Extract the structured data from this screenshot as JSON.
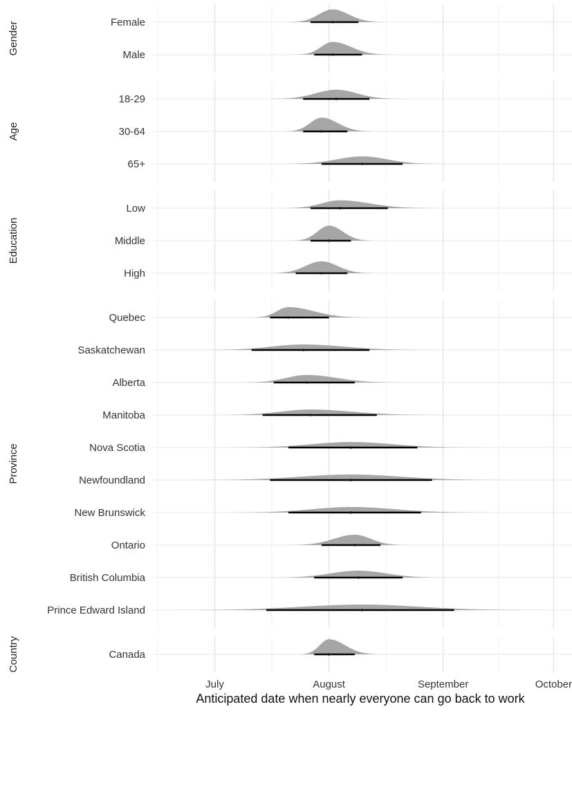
{
  "chart_data": {
    "type": "density-interval",
    "xlabel": "Anticipated date when nearly everyone can go back to work",
    "x_ticks": [
      "July",
      "August",
      "September",
      "October"
    ],
    "x_tick_dates": [
      "2021-07-01",
      "2021-08-01",
      "2021-09-01",
      "2021-10-01"
    ],
    "xlim": [
      "2021-06-14",
      "2021-10-06"
    ],
    "grid": true,
    "density_color": "#a6a6a6",
    "interval_color": "#000000",
    "facets": [
      {
        "label": "Gender",
        "rows": [
          {
            "label": "Female",
            "median": "2021-08-02",
            "lo": "2021-07-27",
            "hi": "2021-08-09",
            "spread": 4.2
          },
          {
            "label": "Male",
            "median": "2021-08-02",
            "lo": "2021-07-28",
            "hi": "2021-08-10",
            "spread": 4.2
          }
        ]
      },
      {
        "label": "Age",
        "rows": [
          {
            "label": "18-29",
            "median": "2021-08-03",
            "lo": "2021-07-25",
            "hi": "2021-08-12",
            "spread": 5.0
          },
          {
            "label": "30-64",
            "median": "2021-07-30",
            "lo": "2021-07-25",
            "hi": "2021-08-06",
            "spread": 3.8
          },
          {
            "label": "65+",
            "median": "2021-08-10",
            "lo": "2021-07-30",
            "hi": "2021-08-21",
            "spread": 6.0
          }
        ]
      },
      {
        "label": "Education",
        "rows": [
          {
            "label": "Low",
            "median": "2021-08-04",
            "lo": "2021-07-27",
            "hi": "2021-08-17",
            "spread": 6.0
          },
          {
            "label": "Middle",
            "median": "2021-08-01",
            "lo": "2021-07-27",
            "hi": "2021-08-07",
            "spread": 3.2
          },
          {
            "label": "High",
            "median": "2021-07-30",
            "lo": "2021-07-23",
            "hi": "2021-08-06",
            "spread": 4.0
          }
        ]
      },
      {
        "label": "Province",
        "rows": [
          {
            "label": "Quebec",
            "median": "2021-07-21",
            "lo": "2021-07-16",
            "hi": "2021-08-01",
            "spread": 4.5
          },
          {
            "label": "Saskatchewan",
            "median": "2021-07-25",
            "lo": "2021-07-11",
            "hi": "2021-08-12",
            "spread": 9.5
          },
          {
            "label": "Alberta",
            "median": "2021-07-26",
            "lo": "2021-07-17",
            "hi": "2021-08-08",
            "spread": 6.5
          },
          {
            "label": "Manitoba",
            "median": "2021-07-27",
            "lo": "2021-07-14",
            "hi": "2021-08-14",
            "spread": 9.0
          },
          {
            "label": "Nova Scotia",
            "median": "2021-08-07",
            "lo": "2021-07-21",
            "hi": "2021-08-25",
            "spread": 11.0
          },
          {
            "label": "Newfoundland",
            "median": "2021-08-07",
            "lo": "2021-07-16",
            "hi": "2021-08-29",
            "spread": 14.0
          },
          {
            "label": "New Brunswick",
            "median": "2021-08-07",
            "lo": "2021-07-21",
            "hi": "2021-08-26",
            "spread": 11.0
          },
          {
            "label": "Ontario",
            "median": "2021-08-08",
            "lo": "2021-07-30",
            "hi": "2021-08-15",
            "spread": 4.5
          },
          {
            "label": "British Columbia",
            "median": "2021-08-09",
            "lo": "2021-07-28",
            "hi": "2021-08-21",
            "spread": 6.5
          },
          {
            "label": "Prince Edward Island",
            "median": "2021-08-10",
            "lo": "2021-07-15",
            "hi": "2021-09-04",
            "spread": 16.0
          }
        ]
      },
      {
        "label": "Country",
        "rows": [
          {
            "label": "Canada",
            "median": "2021-08-01",
            "lo": "2021-07-28",
            "hi": "2021-08-08",
            "spread": 3.6
          }
        ]
      }
    ]
  }
}
